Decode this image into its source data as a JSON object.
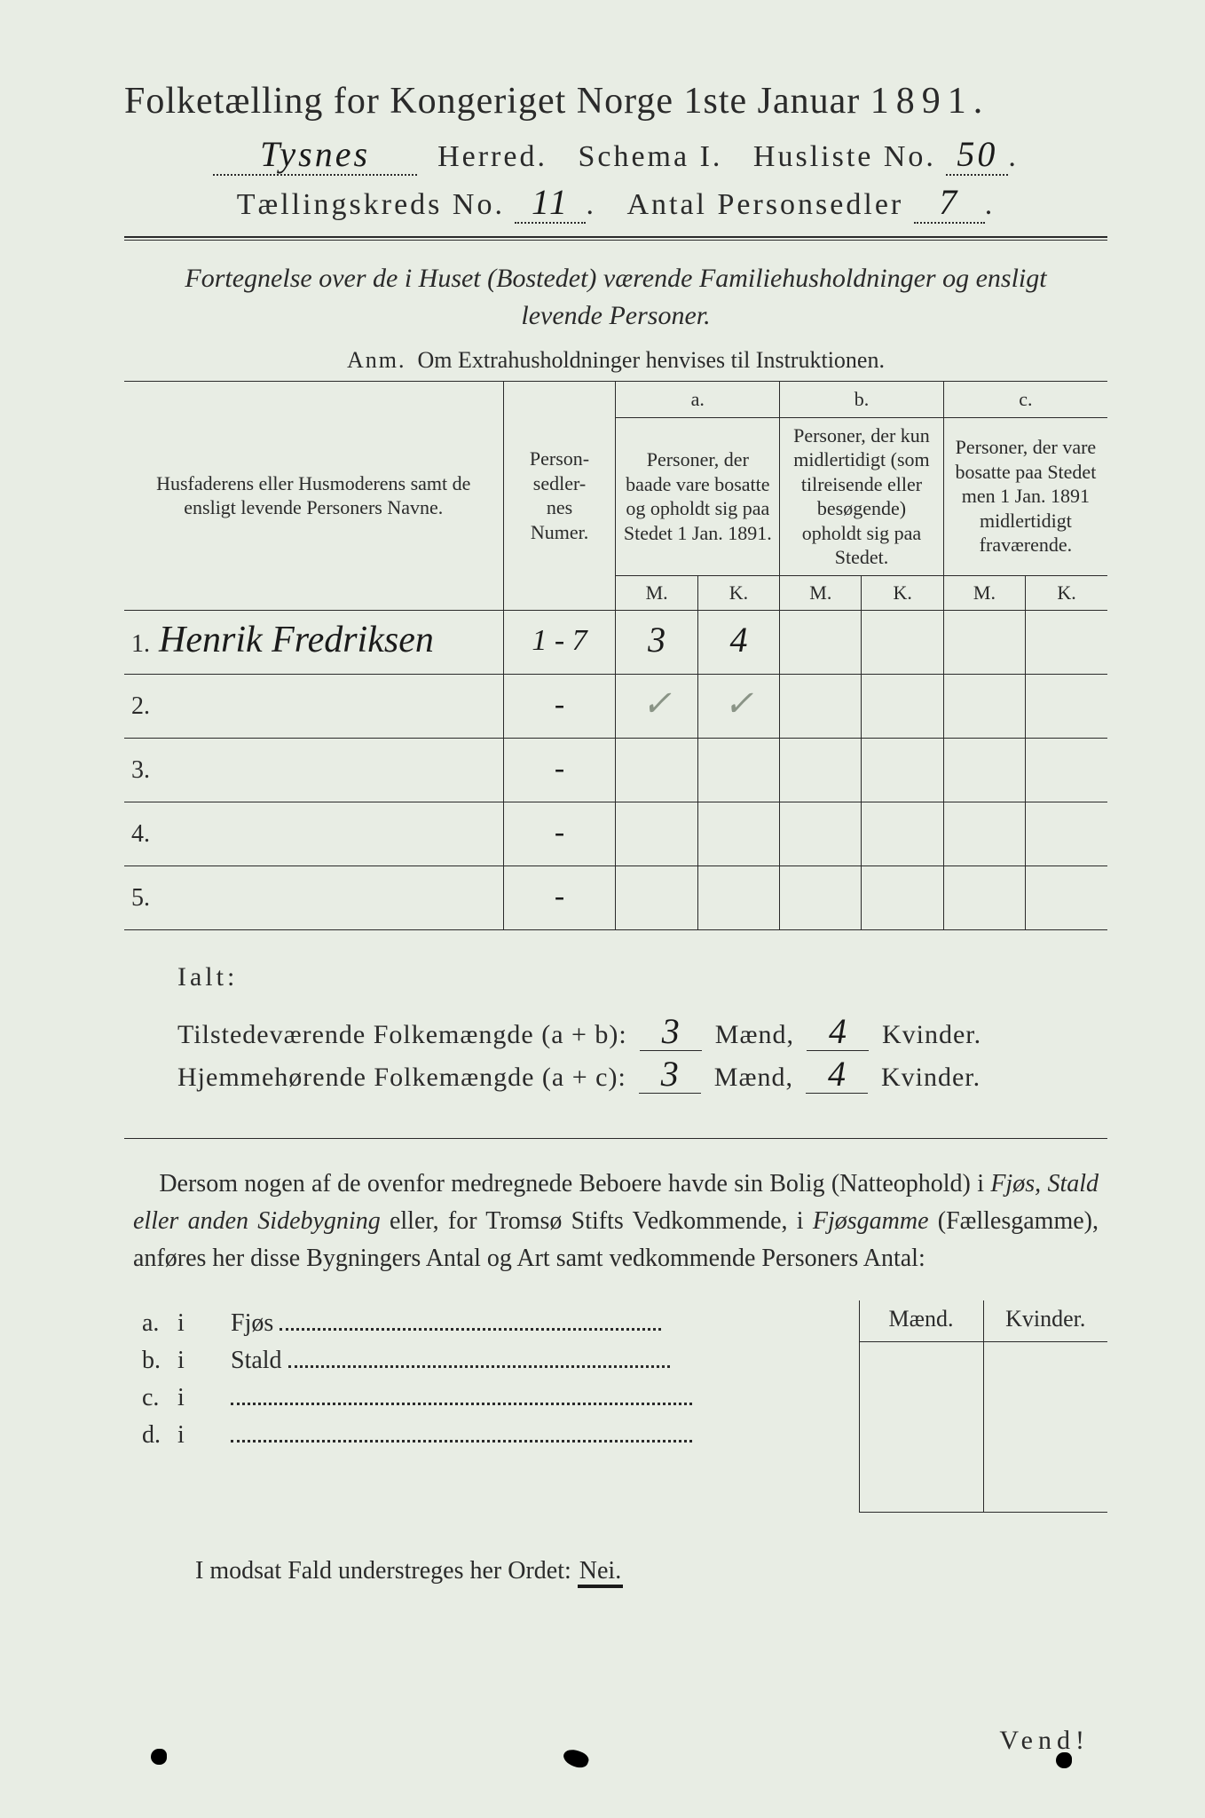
{
  "colors": {
    "paper": "#e8ede4",
    "ink": "#2a2a2a",
    "faint": "#8a9486"
  },
  "title": {
    "main_pre": "Folketælling for Kongeriget Norge 1ste Januar",
    "year": "1891.",
    "herred_hand": "Tysnes",
    "herred_label": "Herred.",
    "schema": "Schema I.",
    "husliste_label": "Husliste No.",
    "husliste_no": "50",
    "kreds_label": "Tællingskreds No.",
    "kreds_no": "11",
    "antal_label": "Antal Personsedler",
    "antal_no": "7"
  },
  "subtitle_line1": "Fortegnelse over de i Huset (Bostedet) værende Familiehusholdninger og ensligt",
  "subtitle_line2": "levende Personer.",
  "anm": {
    "label": "Anm.",
    "text": "Om Extrahusholdninger henvises til Instruktionen."
  },
  "table": {
    "headers": {
      "name": "Husfaderens eller Husmoderens samt de ensligt levende Personers Navne.",
      "num": "Person-\nsedler-\nnes\nNumer.",
      "a_label": "a.",
      "a": "Personer, der baade vare bosatte og opholdt sig paa Stedet 1 Jan. 1891.",
      "b_label": "b.",
      "b": "Personer, der kun midlertidigt (som tilreisende eller besøgende) opholdt sig paa Stedet.",
      "c_label": "c.",
      "c": "Personer, der vare bosatte paa Stedet men 1 Jan. 1891 midlertidigt fraværende.",
      "M": "M.",
      "K": "K."
    },
    "rows": [
      {
        "n": "1.",
        "name": "Henrik Fredriksen",
        "num": "1 - 7",
        "aM": "3",
        "aK": "4",
        "bM": "",
        "bK": "",
        "cM": "",
        "cK": ""
      },
      {
        "n": "2.",
        "name": "",
        "num": "-",
        "aM": "✓",
        "aK": "✓",
        "aFaint": true,
        "bM": "",
        "bK": "",
        "cM": "",
        "cK": ""
      },
      {
        "n": "3.",
        "name": "",
        "num": "-",
        "aM": "",
        "aK": "",
        "bM": "",
        "bK": "",
        "cM": "",
        "cK": ""
      },
      {
        "n": "4.",
        "name": "",
        "num": "-",
        "aM": "",
        "aK": "",
        "bM": "",
        "bK": "",
        "cM": "",
        "cK": ""
      },
      {
        "n": "5.",
        "name": "",
        "num": "-",
        "aM": "",
        "aK": "",
        "bM": "",
        "bK": "",
        "cM": "",
        "cK": ""
      }
    ]
  },
  "ialt": {
    "label": "Ialt:",
    "row1_pre": "Tilstedeværende Folkemængde (a + b):",
    "row2_pre": "Hjemmehørende Folkemængde (a + c):",
    "maend": "Mænd,",
    "kvinder": "Kvinder.",
    "r1_m": "3",
    "r1_k": "4",
    "r2_m": "3",
    "r2_k": "4"
  },
  "para": "Dersom nogen af de ovenfor medregnede Beboere havde sin Bolig (Natteophold) i Fjøs, Stald eller anden Sidebygning eller, for Tromsø Stifts Vedkommende, i Fjøsgamme (Fællesgamme), anføres her disse Bygningers Antal og Art samt vedkommende Personers Antal:",
  "bygn": {
    "rows": [
      {
        "k": "a.",
        "i": "i",
        "label": "Fjøs"
      },
      {
        "k": "b.",
        "i": "i",
        "label": "Stald"
      },
      {
        "k": "c.",
        "i": "i",
        "label": ""
      },
      {
        "k": "d.",
        "i": "i",
        "label": ""
      }
    ],
    "maend": "Mænd.",
    "kvinder": "Kvinder."
  },
  "modsat": {
    "pre": "I modsat Fald understreges her Ordet:",
    "nei": "Nei."
  },
  "vend": "Vend!"
}
